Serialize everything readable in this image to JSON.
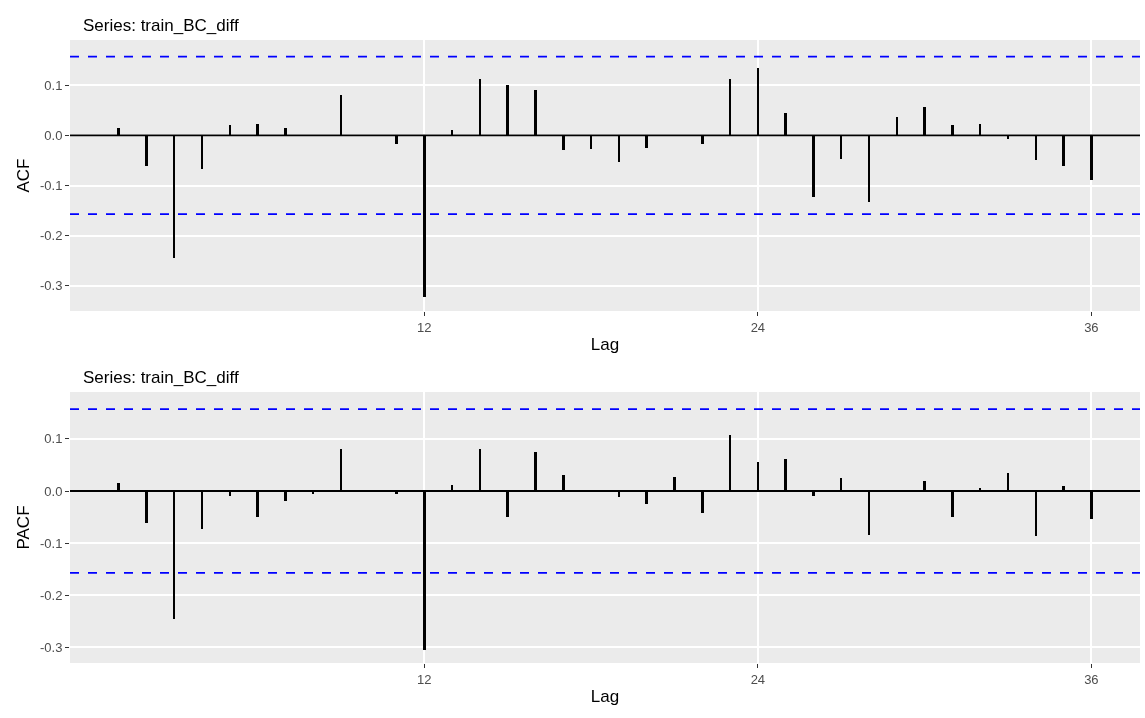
{
  "chart_data": [
    {
      "type": "bar",
      "title": "Series: train_BC_diff",
      "xlabel": "Lag",
      "ylabel": "ACF",
      "x": [
        1,
        2,
        3,
        4,
        5,
        6,
        7,
        8,
        9,
        10,
        11,
        12,
        13,
        14,
        15,
        16,
        17,
        18,
        19,
        20,
        21,
        22,
        23,
        24,
        25,
        26,
        27,
        28,
        29,
        30,
        31,
        32,
        33,
        34,
        35,
        36
      ],
      "series": [
        {
          "color": "#000000",
          "values": [
            0.015,
            -0.062,
            -0.245,
            -0.068,
            0.02,
            0.022,
            0.015,
            0.0,
            0.08,
            0.0,
            -0.017,
            -0.322,
            0.01,
            0.112,
            0.101,
            0.09,
            -0.03,
            -0.027,
            -0.053,
            -0.026,
            0.0,
            -0.018,
            0.112,
            0.135,
            0.044,
            -0.122,
            -0.047,
            -0.133,
            0.036,
            0.056,
            0.02,
            0.023,
            -0.007,
            -0.05,
            -0.061,
            -0.089
          ]
        }
      ],
      "xlim": [
        -0.75,
        37.75
      ],
      "xticks": [
        12,
        24,
        36
      ],
      "ylim": [
        -0.35,
        0.19
      ],
      "yticks": [
        -0.3,
        -0.2,
        -0.1,
        {
          "value": 0,
          "label": "0.0"
        },
        0.1
      ],
      "grid": true,
      "ref_lines": [
        {
          "axis": "y",
          "value": 0,
          "color": "#000000",
          "line_style": "solid"
        },
        {
          "axis": "y",
          "value": 0.157,
          "color": "#0000ff",
          "line_style": "dashed"
        },
        {
          "axis": "y",
          "value": -0.157,
          "color": "#0000ff",
          "line_style": "dashed"
        }
      ]
    },
    {
      "type": "bar",
      "title": "Series: train_BC_diff",
      "xlabel": "Lag",
      "ylabel": "PACF",
      "x": [
        1,
        2,
        3,
        4,
        5,
        6,
        7,
        8,
        9,
        10,
        11,
        12,
        13,
        14,
        15,
        16,
        17,
        18,
        19,
        20,
        21,
        22,
        23,
        24,
        25,
        26,
        27,
        28,
        29,
        30,
        31,
        32,
        33,
        34,
        35,
        36
      ],
      "series": [
        {
          "color": "#000000",
          "values": [
            0.015,
            -0.062,
            -0.245,
            -0.073,
            -0.01,
            -0.05,
            -0.02,
            -0.005,
            0.08,
            0.0,
            -0.005,
            -0.305,
            0.012,
            0.08,
            -0.05,
            0.075,
            0.03,
            0.0,
            -0.012,
            -0.025,
            0.027,
            -0.043,
            0.108,
            0.055,
            0.062,
            -0.01,
            0.025,
            -0.085,
            0.0,
            0.02,
            -0.05,
            0.005,
            0.034,
            -0.087,
            0.009,
            -0.054
          ]
        }
      ],
      "xlim": [
        -0.75,
        37.75
      ],
      "xticks": [
        12,
        24,
        36
      ],
      "ylim": [
        -0.33,
        0.19
      ],
      "yticks": [
        -0.3,
        -0.2,
        -0.1,
        {
          "value": 0,
          "label": "0.0"
        },
        0.1
      ],
      "grid": true,
      "ref_lines": [
        {
          "axis": "y",
          "value": 0,
          "color": "#000000",
          "line_style": "solid"
        },
        {
          "axis": "y",
          "value": 0.157,
          "color": "#0000ff",
          "line_style": "dashed"
        },
        {
          "axis": "y",
          "value": -0.157,
          "color": "#0000ff",
          "line_style": "dashed"
        }
      ]
    }
  ]
}
